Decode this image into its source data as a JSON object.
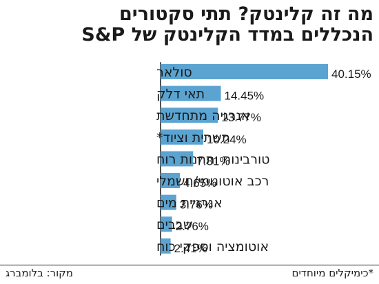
{
  "title": {
    "line1": "מה זה קלינטק? תתי סקטורים",
    "line2": "הנכללים במדד הקלינטק של S&P"
  },
  "chart_data": {
    "type": "bar",
    "orientation": "horizontal",
    "categories": [
      "סולאר",
      "תאי דלק",
      "אנרגיה מתחדשת",
      "תשתית וציוד*",
      "טורבינות ותחנות רוח",
      "רכב אוטונומי/חשמלי",
      "אנרגיית מים",
      "שבבים",
      "אוטומציה וספקי כוח"
    ],
    "values": [
      40.15,
      14.45,
      13.77,
      10.24,
      7.81,
      4.65,
      3.76,
      2.76,
      2.41
    ],
    "value_labels": [
      "40.15%",
      "14.45%",
      "13.77%",
      "10.24%",
      "7.81%",
      "4.65%",
      "3.76%",
      "2.76%",
      "2.41%"
    ],
    "unit": "%",
    "xlim": [
      0,
      40.15
    ],
    "bar_color": "#5ba3d0",
    "grid": false,
    "legend": "none"
  },
  "footer": {
    "footnote": "*כימיקלים מיוחדים",
    "source": "מקור: בלומברג"
  }
}
